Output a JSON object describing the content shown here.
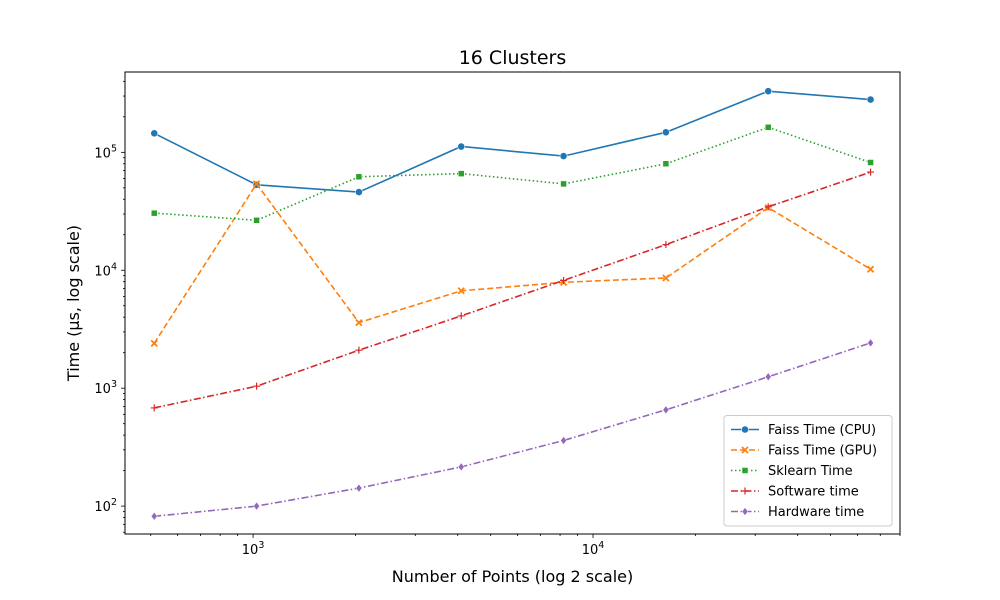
{
  "chart_data": {
    "type": "line",
    "title": "16 Clusters",
    "xlabel": "Number of Points (log 2 scale)",
    "ylabel": "Time (µs, log scale)",
    "xscale": "log",
    "yscale": "log",
    "xlim": [
      420,
      80000
    ],
    "ylim": [
      58,
      480000
    ],
    "x": [
      512,
      1024,
      2048,
      4096,
      8192,
      16384,
      32768,
      65536
    ],
    "x_ticks": [
      {
        "value": 1000,
        "base": "10",
        "exp": "3"
      },
      {
        "value": 10000,
        "base": "10",
        "exp": "4"
      }
    ],
    "y_ticks": [
      {
        "value": 100,
        "base": "10",
        "exp": "2"
      },
      {
        "value": 1000,
        "base": "10",
        "exp": "3"
      },
      {
        "value": 10000,
        "base": "10",
        "exp": "4"
      },
      {
        "value": 100000,
        "base": "10",
        "exp": "5"
      }
    ],
    "grid": false,
    "legend_position": "lower-right",
    "series": [
      {
        "name": "Faiss Time (CPU)",
        "color": "#1f77b4",
        "dash": "solid",
        "marker": "circle",
        "values": [
          145000,
          53000,
          46000,
          112000,
          93000,
          148000,
          330000,
          280000
        ]
      },
      {
        "name": "Faiss Time (GPU)",
        "color": "#ff7f0e",
        "dash": "dashed",
        "marker": "x",
        "values": [
          2400,
          54000,
          3600,
          6700,
          7900,
          8600,
          34000,
          10200
        ]
      },
      {
        "name": "Sklearn Time",
        "color": "#2ca02c",
        "dash": "dotted",
        "marker": "square",
        "values": [
          30500,
          26500,
          62000,
          66000,
          54000,
          80000,
          163000,
          82000
        ]
      },
      {
        "name": "Software time",
        "color": "#d62728",
        "dash": "dashdot",
        "marker": "plus",
        "values": [
          680,
          1040,
          2100,
          4100,
          8200,
          16500,
          34500,
          68000
        ]
      },
      {
        "name": "Hardware time",
        "color": "#9467bd",
        "dash": "dashdot",
        "marker": "diamond",
        "values": [
          82,
          100,
          142,
          215,
          360,
          655,
          1250,
          2420
        ]
      }
    ]
  }
}
